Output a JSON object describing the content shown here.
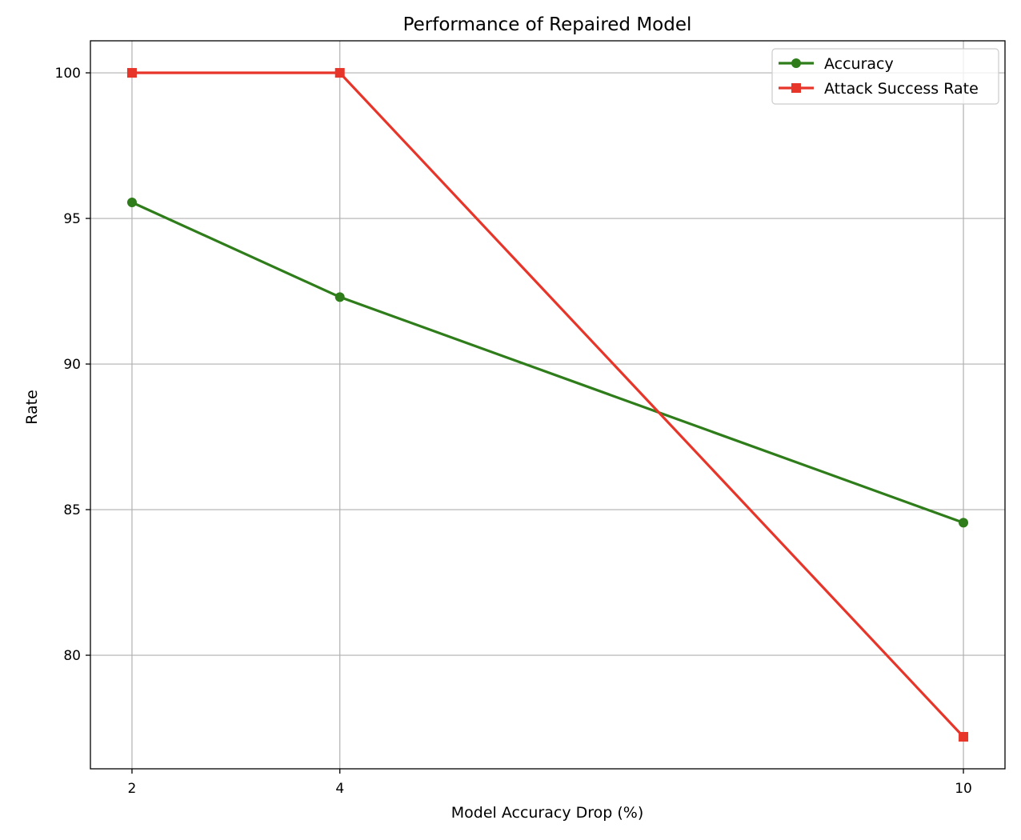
{
  "chart_data": {
    "type": "line",
    "title": "Performance of Repaired Model",
    "xlabel": "Model Accuracy Drop (%)",
    "ylabel": "Rate",
    "x": [
      2,
      4,
      10
    ],
    "x_ticks": [
      "2",
      "4",
      "10"
    ],
    "y_ticks": [
      "80",
      "85",
      "90",
      "95",
      "100"
    ],
    "xlim": [
      1.6,
      10.4
    ],
    "ylim": [
      76.1,
      101.1
    ],
    "grid": true,
    "legend_position": "top-right",
    "series": [
      {
        "name": "Accuracy",
        "values": [
          95.55,
          92.3,
          84.55
        ],
        "color": "#2e7d1a",
        "marker": "circle"
      },
      {
        "name": "Attack Success Rate",
        "values": [
          100.0,
          100.0,
          77.2
        ],
        "color": "#e8352a",
        "marker": "square"
      }
    ]
  }
}
